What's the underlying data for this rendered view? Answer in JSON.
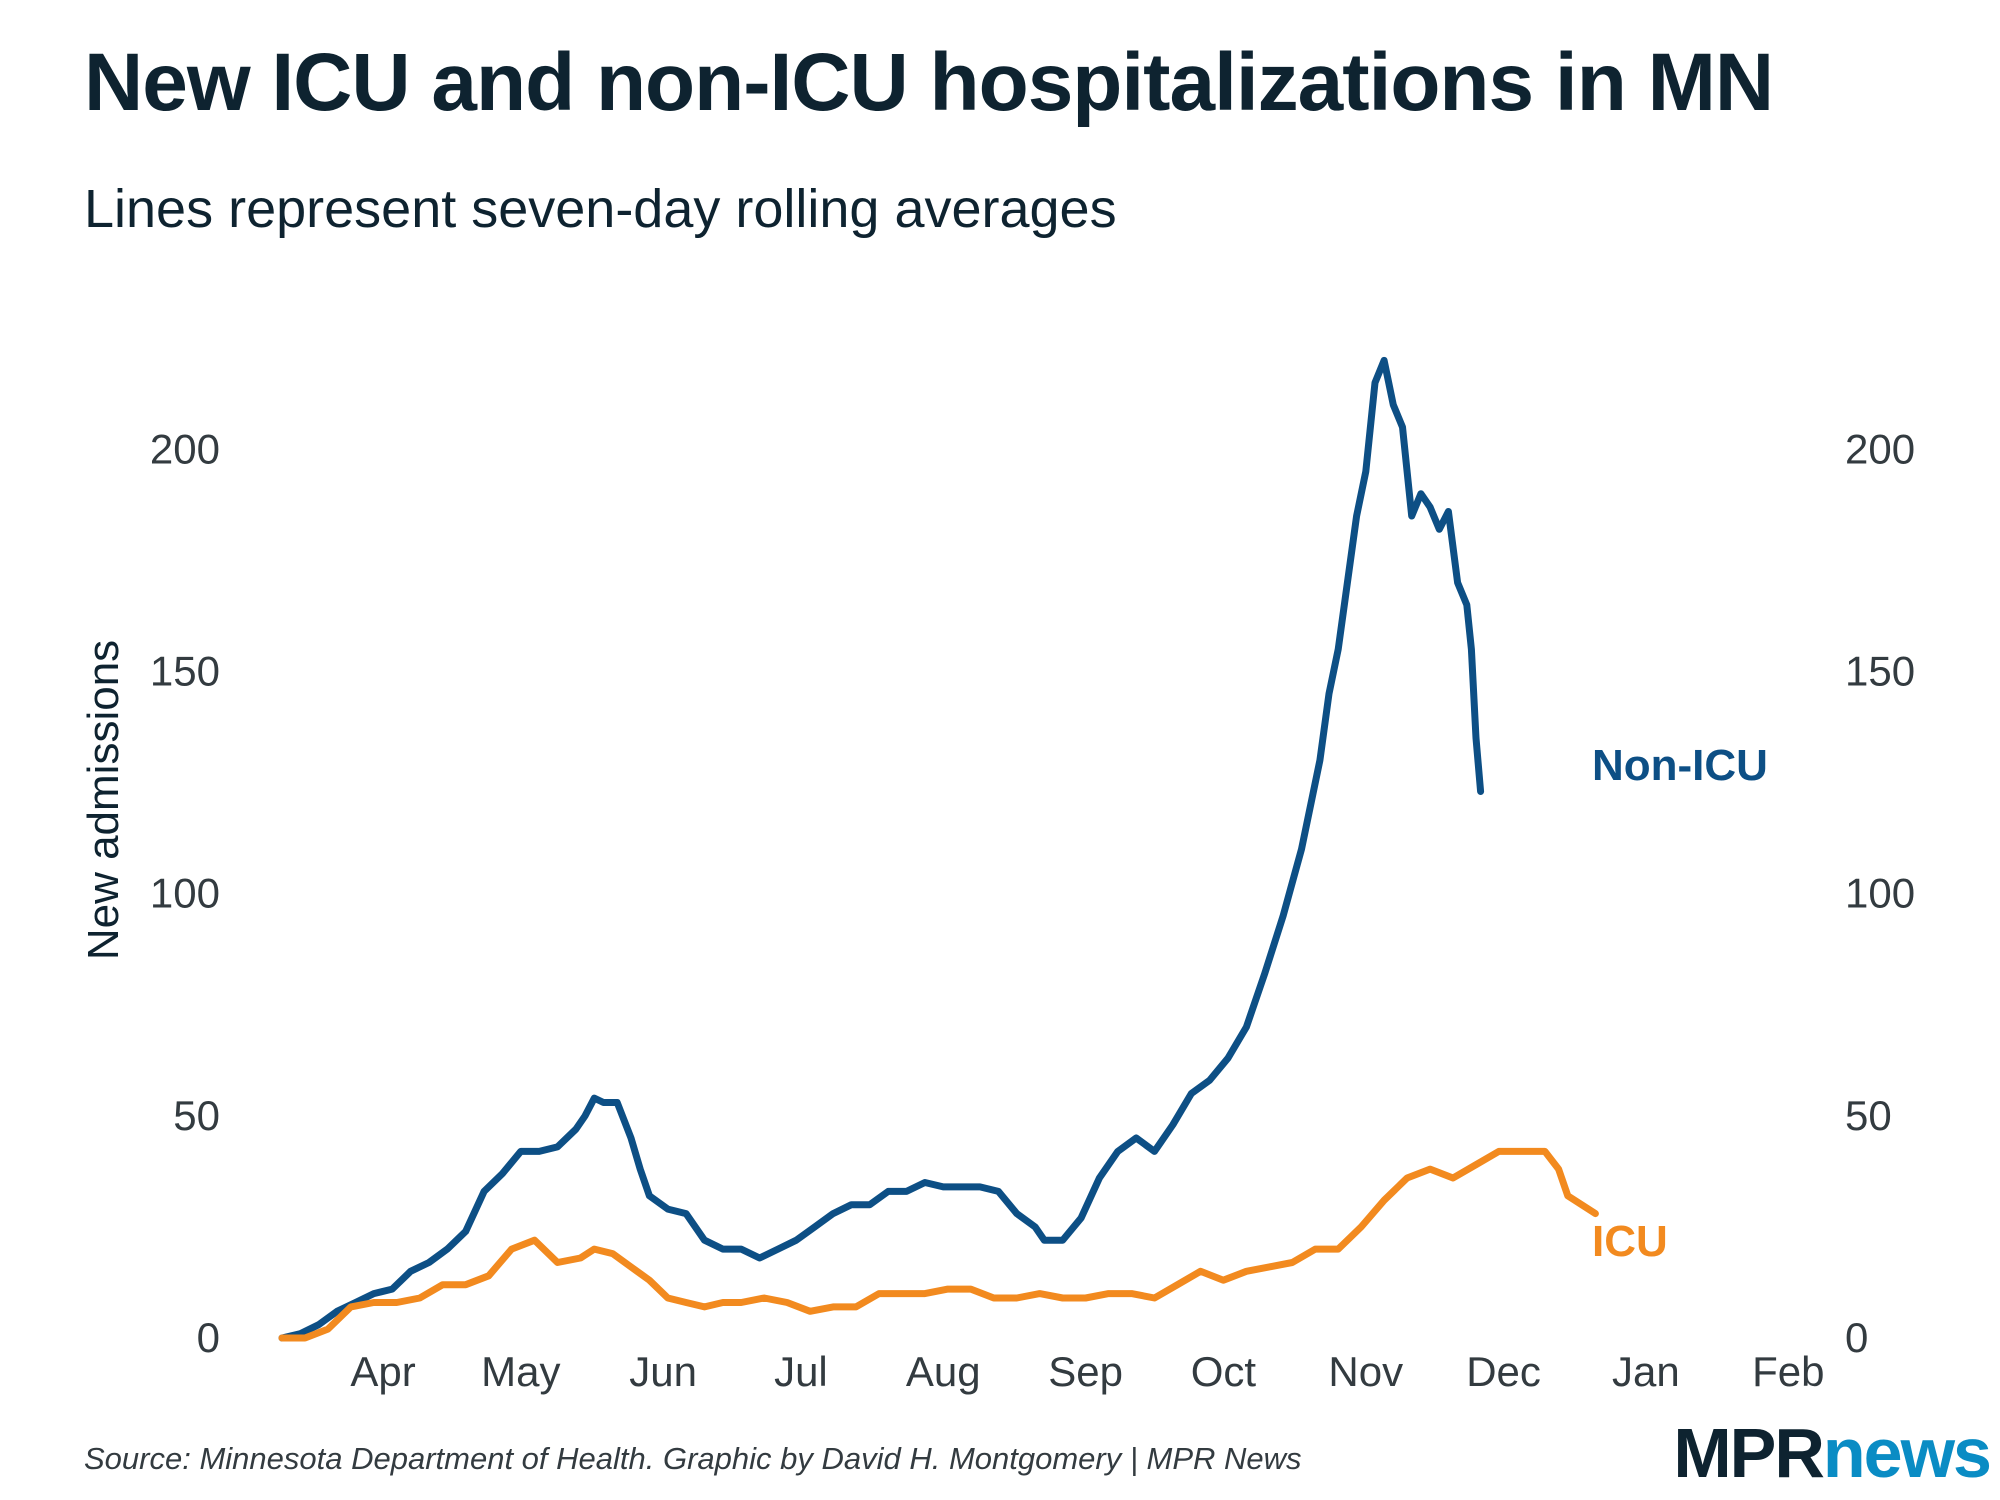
{
  "title": "New ICU and non-ICU hospitalizations in MN",
  "subtitle": "Lines represent seven-day rolling averages",
  "source": "Source: Minnesota Department of Health. Graphic by David H. Montgomery | MPR News",
  "logo": {
    "mpr": "MPR",
    "news": "news"
  },
  "colors": {
    "non_icu": "#0d4f85",
    "icu": "#f28a1f",
    "text": "#0e2330"
  },
  "chart_data": {
    "type": "line",
    "ylabel": "New admissions",
    "ylim": [
      0,
      230
    ],
    "yticks": [
      0,
      50,
      100,
      150,
      200
    ],
    "xlim": [
      0,
      336
    ],
    "xticks": [
      {
        "label": "Apr",
        "x": 22
      },
      {
        "label": "May",
        "x": 52
      },
      {
        "label": "Jun",
        "x": 83
      },
      {
        "label": "Jul",
        "x": 113
      },
      {
        "label": "Aug",
        "x": 144
      },
      {
        "label": "Sep",
        "x": 175
      },
      {
        "label": "Oct",
        "x": 205
      },
      {
        "label": "Nov",
        "x": 236
      },
      {
        "label": "Dec",
        "x": 266
      },
      {
        "label": "Jan",
        "x": 297
      },
      {
        "label": "Feb",
        "x": 328
      }
    ],
    "x_unit": "days since Mar 10",
    "series": [
      {
        "name": "Non-ICU",
        "label": "Non-ICU",
        "points": [
          [
            0,
            0
          ],
          [
            4,
            1
          ],
          [
            8,
            3
          ],
          [
            12,
            6
          ],
          [
            16,
            8
          ],
          [
            20,
            10
          ],
          [
            24,
            11
          ],
          [
            28,
            15
          ],
          [
            32,
            17
          ],
          [
            36,
            20
          ],
          [
            40,
            24
          ],
          [
            44,
            33
          ],
          [
            48,
            37
          ],
          [
            52,
            42
          ],
          [
            56,
            42
          ],
          [
            60,
            43
          ],
          [
            64,
            47
          ],
          [
            66,
            50
          ],
          [
            68,
            54
          ],
          [
            70,
            53
          ],
          [
            73,
            53
          ],
          [
            76,
            45
          ],
          [
            78,
            38
          ],
          [
            80,
            32
          ],
          [
            84,
            29
          ],
          [
            88,
            28
          ],
          [
            92,
            22
          ],
          [
            96,
            20
          ],
          [
            100,
            20
          ],
          [
            104,
            18
          ],
          [
            108,
            20
          ],
          [
            112,
            22
          ],
          [
            116,
            25
          ],
          [
            120,
            28
          ],
          [
            124,
            30
          ],
          [
            128,
            30
          ],
          [
            132,
            33
          ],
          [
            136,
            33
          ],
          [
            140,
            35
          ],
          [
            144,
            34
          ],
          [
            148,
            34
          ],
          [
            152,
            34
          ],
          [
            156,
            33
          ],
          [
            160,
            28
          ],
          [
            164,
            25
          ],
          [
            166,
            22
          ],
          [
            170,
            22
          ],
          [
            174,
            27
          ],
          [
            178,
            36
          ],
          [
            182,
            42
          ],
          [
            186,
            45
          ],
          [
            190,
            42
          ],
          [
            194,
            48
          ],
          [
            198,
            55
          ],
          [
            202,
            58
          ],
          [
            206,
            63
          ],
          [
            210,
            70
          ],
          [
            214,
            82
          ],
          [
            218,
            95
          ],
          [
            222,
            110
          ],
          [
            226,
            130
          ],
          [
            228,
            145
          ],
          [
            230,
            155
          ],
          [
            232,
            170
          ],
          [
            234,
            185
          ],
          [
            236,
            195
          ],
          [
            238,
            215
          ],
          [
            240,
            220
          ],
          [
            242,
            210
          ],
          [
            244,
            205
          ],
          [
            246,
            185
          ],
          [
            248,
            190
          ],
          [
            250,
            187
          ],
          [
            252,
            182
          ],
          [
            254,
            186
          ],
          [
            256,
            170
          ],
          [
            258,
            165
          ],
          [
            259,
            155
          ],
          [
            260,
            135
          ],
          [
            261,
            123
          ]
        ]
      },
      {
        "name": "ICU",
        "label": "ICU",
        "points": [
          [
            0,
            0
          ],
          [
            5,
            0
          ],
          [
            10,
            2
          ],
          [
            15,
            7
          ],
          [
            20,
            8
          ],
          [
            25,
            8
          ],
          [
            30,
            9
          ],
          [
            35,
            12
          ],
          [
            40,
            12
          ],
          [
            45,
            14
          ],
          [
            50,
            20
          ],
          [
            55,
            22
          ],
          [
            60,
            17
          ],
          [
            65,
            18
          ],
          [
            68,
            20
          ],
          [
            72,
            19
          ],
          [
            76,
            16
          ],
          [
            80,
            13
          ],
          [
            84,
            9
          ],
          [
            88,
            8
          ],
          [
            92,
            7
          ],
          [
            96,
            8
          ],
          [
            100,
            8
          ],
          [
            105,
            9
          ],
          [
            110,
            8
          ],
          [
            115,
            6
          ],
          [
            120,
            7
          ],
          [
            125,
            7
          ],
          [
            130,
            10
          ],
          [
            135,
            10
          ],
          [
            140,
            10
          ],
          [
            145,
            11
          ],
          [
            150,
            11
          ],
          [
            155,
            9
          ],
          [
            160,
            9
          ],
          [
            165,
            10
          ],
          [
            170,
            9
          ],
          [
            175,
            9
          ],
          [
            180,
            10
          ],
          [
            185,
            10
          ],
          [
            190,
            9
          ],
          [
            195,
            12
          ],
          [
            200,
            15
          ],
          [
            205,
            13
          ],
          [
            210,
            15
          ],
          [
            215,
            16
          ],
          [
            220,
            17
          ],
          [
            225,
            20
          ],
          [
            230,
            20
          ],
          [
            235,
            25
          ],
          [
            240,
            31
          ],
          [
            245,
            36
          ],
          [
            250,
            38
          ],
          [
            255,
            36
          ],
          [
            260,
            39
          ],
          [
            265,
            42
          ],
          [
            270,
            42
          ],
          [
            275,
            42
          ],
          [
            278,
            38
          ],
          [
            280,
            32
          ],
          [
            283,
            30
          ],
          [
            286,
            28
          ]
        ]
      }
    ]
  }
}
